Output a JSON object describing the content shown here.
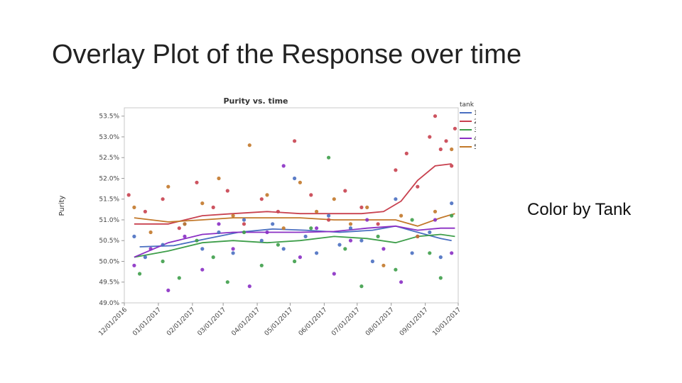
{
  "slide": {
    "title": "Overlay Plot of the Response over time",
    "note": "Color by Tank"
  },
  "chart_data": {
    "type": "scatter",
    "title": "Purity vs. time",
    "xlabel": "",
    "ylabel": "Purity",
    "ylim": [
      49.0,
      53.7
    ],
    "yticks": [
      "53.5%",
      "53.0%",
      "52.5%",
      "52.0%",
      "51.5%",
      "51.0%",
      "50.5%",
      "50.0%",
      "49.5%",
      "49.0%"
    ],
    "ytick_values": [
      53.5,
      53.0,
      52.5,
      52.0,
      51.5,
      51.0,
      50.5,
      50.0,
      49.5,
      49.0
    ],
    "xticks": [
      "12/01/2016",
      "01/01/2017",
      "02/01/2017",
      "03/01/2017",
      "04/01/2017",
      "05/01/2017",
      "06/01/2017",
      "07/01/2017",
      "08/01/2017",
      "09/01/2017",
      "10/01/2017"
    ],
    "xlim": [
      "12/01/2016",
      "10/01/2017"
    ],
    "grid": false,
    "legend_title": "tank",
    "legend_position": "right",
    "series": [
      {
        "name": "1",
        "color": "#4a6fc1",
        "smooth": [
          [
            "12/15/2016",
            50.35
          ],
          [
            "01/15/2017",
            50.38
          ],
          [
            "02/15/2017",
            50.55
          ],
          [
            "03/15/2017",
            50.7
          ],
          [
            "04/15/2017",
            50.78
          ],
          [
            "05/15/2017",
            50.75
          ],
          [
            "06/15/2017",
            50.7
          ],
          [
            "07/15/2017",
            50.75
          ],
          [
            "08/05/2017",
            50.85
          ],
          [
            "08/25/2017",
            50.7
          ],
          [
            "09/15/2017",
            50.55
          ],
          [
            "09/25/2017",
            50.5
          ]
        ],
        "points": [
          [
            "12/10/2016",
            50.6
          ],
          [
            "12/20/2016",
            50.1
          ],
          [
            "01/05/2017",
            50.4
          ],
          [
            "01/25/2017",
            50.9
          ],
          [
            "02/10/2017",
            50.3
          ],
          [
            "02/25/2017",
            50.7
          ],
          [
            "03/10/2017",
            50.2
          ],
          [
            "03/20/2017",
            51.0
          ],
          [
            "04/05/2017",
            50.5
          ],
          [
            "04/15/2017",
            50.9
          ],
          [
            "04/25/2017",
            50.3
          ],
          [
            "05/05/2017",
            52.0
          ],
          [
            "05/15/2017",
            50.6
          ],
          [
            "05/25/2017",
            50.2
          ],
          [
            "06/05/2017",
            51.1
          ],
          [
            "06/15/2017",
            50.4
          ],
          [
            "06/25/2017",
            50.8
          ],
          [
            "07/05/2017",
            50.5
          ],
          [
            "07/15/2017",
            50.0
          ],
          [
            "08/05/2017",
            51.5
          ],
          [
            "08/20/2017",
            50.2
          ],
          [
            "09/05/2017",
            50.7
          ],
          [
            "09/15/2017",
            50.1
          ],
          [
            "09/25/2017",
            51.4
          ]
        ]
      },
      {
        "name": "2",
        "color": "#c8414f",
        "smooth": [
          [
            "12/10/2016",
            50.9
          ],
          [
            "01/10/2017",
            50.9
          ],
          [
            "02/10/2017",
            51.1
          ],
          [
            "03/10/2017",
            51.15
          ],
          [
            "04/10/2017",
            51.2
          ],
          [
            "05/10/2017",
            51.15
          ],
          [
            "06/10/2017",
            51.15
          ],
          [
            "07/05/2017",
            51.15
          ],
          [
            "07/25/2017",
            51.2
          ],
          [
            "08/10/2017",
            51.45
          ],
          [
            "08/25/2017",
            51.95
          ],
          [
            "09/10/2017",
            52.3
          ],
          [
            "09/25/2017",
            52.35
          ]
        ],
        "points": [
          [
            "12/05/2016",
            51.6
          ],
          [
            "12/20/2016",
            51.2
          ],
          [
            "01/05/2017",
            51.5
          ],
          [
            "01/20/2017",
            50.8
          ],
          [
            "02/05/2017",
            51.9
          ],
          [
            "02/20/2017",
            51.3
          ],
          [
            "03/05/2017",
            51.7
          ],
          [
            "03/20/2017",
            50.9
          ],
          [
            "04/05/2017",
            51.5
          ],
          [
            "04/20/2017",
            51.2
          ],
          [
            "05/05/2017",
            52.9
          ],
          [
            "05/20/2017",
            51.6
          ],
          [
            "06/05/2017",
            51.0
          ],
          [
            "06/20/2017",
            51.7
          ],
          [
            "07/05/2017",
            51.3
          ],
          [
            "07/20/2017",
            50.9
          ],
          [
            "08/05/2017",
            52.2
          ],
          [
            "08/15/2017",
            52.6
          ],
          [
            "08/25/2017",
            51.8
          ],
          [
            "09/05/2017",
            53.0
          ],
          [
            "09/10/2017",
            53.5
          ],
          [
            "09/15/2017",
            52.7
          ],
          [
            "09/20/2017",
            52.9
          ],
          [
            "09/25/2017",
            52.3
          ],
          [
            "09/28/2017",
            53.2
          ]
        ]
      },
      {
        "name": "3",
        "color": "#3e9e4a",
        "smooth": [
          [
            "12/10/2016",
            50.1
          ],
          [
            "01/10/2017",
            50.25
          ],
          [
            "02/10/2017",
            50.45
          ],
          [
            "03/10/2017",
            50.5
          ],
          [
            "04/10/2017",
            50.45
          ],
          [
            "05/10/2017",
            50.5
          ],
          [
            "06/10/2017",
            50.6
          ],
          [
            "07/10/2017",
            50.55
          ],
          [
            "08/05/2017",
            50.45
          ],
          [
            "08/25/2017",
            50.6
          ],
          [
            "09/15/2017",
            50.65
          ],
          [
            "09/28/2017",
            50.6
          ]
        ],
        "points": [
          [
            "12/15/2016",
            49.7
          ],
          [
            "01/05/2017",
            50.0
          ],
          [
            "01/20/2017",
            49.6
          ],
          [
            "02/05/2017",
            50.5
          ],
          [
            "02/20/2017",
            50.1
          ],
          [
            "03/05/2017",
            49.5
          ],
          [
            "03/20/2017",
            50.7
          ],
          [
            "04/05/2017",
            49.9
          ],
          [
            "04/20/2017",
            50.4
          ],
          [
            "05/05/2017",
            50.0
          ],
          [
            "05/20/2017",
            50.8
          ],
          [
            "06/05/2017",
            52.5
          ],
          [
            "06/20/2017",
            50.3
          ],
          [
            "07/05/2017",
            49.4
          ],
          [
            "07/20/2017",
            50.6
          ],
          [
            "08/05/2017",
            49.8
          ],
          [
            "08/20/2017",
            51.0
          ],
          [
            "09/05/2017",
            50.2
          ],
          [
            "09/15/2017",
            49.6
          ],
          [
            "09/25/2017",
            51.1
          ]
        ]
      },
      {
        "name": "4",
        "color": "#8a2fc4",
        "smooth": [
          [
            "12/10/2016",
            50.1
          ],
          [
            "01/10/2017",
            50.45
          ],
          [
            "02/10/2017",
            50.65
          ],
          [
            "03/10/2017",
            50.7
          ],
          [
            "04/10/2017",
            50.7
          ],
          [
            "05/10/2017",
            50.7
          ],
          [
            "06/10/2017",
            50.72
          ],
          [
            "07/10/2017",
            50.8
          ],
          [
            "08/05/2017",
            50.85
          ],
          [
            "08/25/2017",
            50.75
          ],
          [
            "09/15/2017",
            50.8
          ],
          [
            "09/28/2017",
            50.8
          ]
        ],
        "points": [
          [
            "12/10/2016",
            49.9
          ],
          [
            "12/25/2016",
            50.3
          ],
          [
            "01/10/2017",
            49.3
          ],
          [
            "01/25/2017",
            50.6
          ],
          [
            "02/10/2017",
            49.8
          ],
          [
            "02/25/2017",
            50.9
          ],
          [
            "03/10/2017",
            50.3
          ],
          [
            "03/25/2017",
            49.4
          ],
          [
            "04/10/2017",
            50.7
          ],
          [
            "04/25/2017",
            52.3
          ],
          [
            "05/10/2017",
            50.1
          ],
          [
            "05/25/2017",
            50.8
          ],
          [
            "06/10/2017",
            49.7
          ],
          [
            "06/25/2017",
            50.5
          ],
          [
            "07/10/2017",
            51.0
          ],
          [
            "07/25/2017",
            50.3
          ],
          [
            "08/10/2017",
            49.5
          ],
          [
            "08/25/2017",
            50.6
          ],
          [
            "09/10/2017",
            51.0
          ],
          [
            "09/25/2017",
            50.2
          ]
        ]
      },
      {
        "name": "5",
        "color": "#c2782a",
        "smooth": [
          [
            "12/10/2016",
            51.05
          ],
          [
            "01/10/2017",
            50.95
          ],
          [
            "02/10/2017",
            51.0
          ],
          [
            "03/10/2017",
            51.05
          ],
          [
            "04/10/2017",
            51.05
          ],
          [
            "05/10/2017",
            51.05
          ],
          [
            "06/10/2017",
            51.0
          ],
          [
            "07/10/2017",
            51.0
          ],
          [
            "08/05/2017",
            51.0
          ],
          [
            "08/25/2017",
            50.85
          ],
          [
            "09/15/2017",
            51.05
          ],
          [
            "09/28/2017",
            51.15
          ]
        ],
        "points": [
          [
            "12/10/2016",
            51.3
          ],
          [
            "12/25/2016",
            50.7
          ],
          [
            "01/10/2017",
            51.8
          ],
          [
            "01/25/2017",
            50.9
          ],
          [
            "02/10/2017",
            51.4
          ],
          [
            "02/25/2017",
            52.0
          ],
          [
            "03/10/2017",
            51.1
          ],
          [
            "03/25/2017",
            52.8
          ],
          [
            "04/10/2017",
            51.6
          ],
          [
            "04/25/2017",
            50.8
          ],
          [
            "05/10/2017",
            51.9
          ],
          [
            "05/25/2017",
            51.2
          ],
          [
            "06/10/2017",
            51.5
          ],
          [
            "06/25/2017",
            50.9
          ],
          [
            "07/10/2017",
            51.3
          ],
          [
            "07/25/2017",
            49.9
          ],
          [
            "08/10/2017",
            51.1
          ],
          [
            "08/25/2017",
            50.6
          ],
          [
            "09/10/2017",
            51.2
          ],
          [
            "09/25/2017",
            52.7
          ]
        ]
      }
    ]
  }
}
